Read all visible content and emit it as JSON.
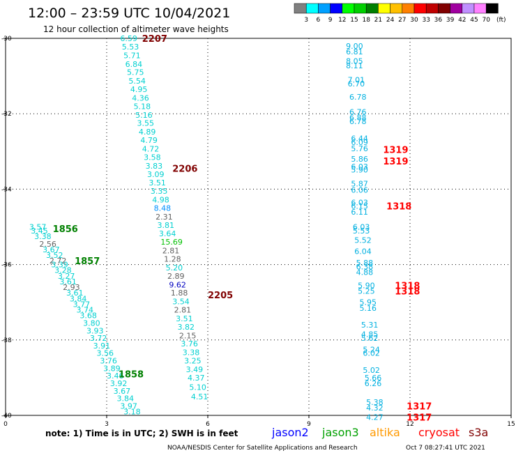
{
  "chart_data": {
    "type": "scatter",
    "title": "12:00 – 23:59 UTC 10/04/2021",
    "subtitle": "12 hour collection of altimeter wave heights",
    "x_range": [
      0,
      15
    ],
    "y_range": [
      -40,
      -30
    ],
    "x_ticks": [
      "0",
      "3",
      "6",
      "9",
      "12",
      "15"
    ],
    "y_ticks": [
      "-30",
      "-32",
      "-34",
      "-36",
      "-38",
      "-40"
    ],
    "grid": true,
    "colorbar": {
      "unit": "(ft)",
      "labels": [
        "3",
        "6",
        "9",
        "12",
        "15",
        "18",
        "21",
        "24",
        "27",
        "30",
        "33",
        "36",
        "39",
        "42",
        "45",
        "70"
      ],
      "colors": [
        "#808080",
        "#00ffff",
        "#00a0ff",
        "#0000ff",
        "#00ff00",
        "#00d000",
        "#008000",
        "#ffff00",
        "#ffc000",
        "#ff8000",
        "#ff0000",
        "#c00000",
        "#800000",
        "#a000a0",
        "#c090ff",
        "#ff80ff",
        "#000000"
      ]
    },
    "tracks": [
      {
        "name": "track-a",
        "color": "#00d0d0",
        "points": [
          {
            "x": 0.7,
            "y": -35.0,
            "v": "3.57"
          },
          {
            "x": 0.75,
            "y": -35.1,
            "v": "3.45"
          },
          {
            "x": 0.85,
            "y": -35.25,
            "v": "3.38"
          },
          {
            "x": 1.0,
            "y": -35.45,
            "v": "2.56",
            "c": "#606060"
          },
          {
            "x": 1.1,
            "y": -35.6,
            "v": "3.67"
          },
          {
            "x": 1.2,
            "y": -35.75,
            "v": "3.52"
          },
          {
            "x": 1.3,
            "y": -35.9,
            "v": "2.72",
            "c": "#606060"
          },
          {
            "x": 1.35,
            "y": -36.0,
            "v": "3.39"
          },
          {
            "x": 1.45,
            "y": -36.15,
            "v": "3.28"
          },
          {
            "x": 1.55,
            "y": -36.3,
            "v": "3.27"
          },
          {
            "x": 1.6,
            "y": -36.45,
            "v": "3.61"
          },
          {
            "x": 1.7,
            "y": -36.6,
            "v": "2.93",
            "c": "#606060"
          },
          {
            "x": 1.8,
            "y": -36.75,
            "v": "3.61"
          },
          {
            "x": 1.9,
            "y": -36.9,
            "v": "3.84"
          },
          {
            "x": 2.0,
            "y": -37.05,
            "v": "3.77"
          },
          {
            "x": 2.1,
            "y": -37.2,
            "v": "3.74"
          },
          {
            "x": 2.2,
            "y": -37.35,
            "v": "3.68"
          },
          {
            "x": 2.3,
            "y": -37.55,
            "v": "3.80"
          },
          {
            "x": 2.4,
            "y": -37.75,
            "v": "3.93"
          },
          {
            "x": 2.5,
            "y": -37.95,
            "v": "3.72"
          },
          {
            "x": 2.6,
            "y": -38.15,
            "v": "3.91"
          },
          {
            "x": 2.7,
            "y": -38.35,
            "v": "3.56"
          },
          {
            "x": 2.8,
            "y": -38.55,
            "v": "3.76"
          },
          {
            "x": 2.9,
            "y": -38.75,
            "v": "3.89"
          },
          {
            "x": 3.0,
            "y": -38.95,
            "v": "3.46"
          },
          {
            "x": 3.1,
            "y": -39.15,
            "v": "3.92"
          },
          {
            "x": 3.2,
            "y": -39.35,
            "v": "3.67"
          },
          {
            "x": 3.3,
            "y": -39.55,
            "v": "3.84"
          },
          {
            "x": 3.4,
            "y": -39.75,
            "v": "3.97"
          },
          {
            "x": 3.5,
            "y": -39.9,
            "v": "3.18"
          }
        ],
        "labels": [
          {
            "x": 1.4,
            "y": -35.05,
            "t": "1856",
            "c": "#008000"
          },
          {
            "x": 2.05,
            "y": -35.9,
            "t": "1857",
            "c": "#008000"
          },
          {
            "x": 3.35,
            "y": -38.9,
            "t": "1858",
            "c": "#008000"
          }
        ]
      },
      {
        "name": "track-b",
        "color": "#00d0d0",
        "points": [
          {
            "x": 3.4,
            "y": -30.0,
            "v": "6.59"
          },
          {
            "x": 3.45,
            "y": -30.22,
            "v": "5.53"
          },
          {
            "x": 3.5,
            "y": -30.45,
            "v": "5.71"
          },
          {
            "x": 3.55,
            "y": -30.68,
            "v": "6.84"
          },
          {
            "x": 3.6,
            "y": -30.9,
            "v": "5.75"
          },
          {
            "x": 3.65,
            "y": -31.13,
            "v": "5.54"
          },
          {
            "x": 3.7,
            "y": -31.35,
            "v": "4.95"
          },
          {
            "x": 3.75,
            "y": -31.58,
            "v": "4.36"
          },
          {
            "x": 3.8,
            "y": -31.8,
            "v": "5.18"
          },
          {
            "x": 3.85,
            "y": -32.03,
            "v": "5.16"
          },
          {
            "x": 3.9,
            "y": -32.25,
            "v": "3.55"
          },
          {
            "x": 3.95,
            "y": -32.48,
            "v": "4.89"
          },
          {
            "x": 4.0,
            "y": -32.7,
            "v": "4.79"
          },
          {
            "x": 4.05,
            "y": -32.93,
            "v": "4.72"
          },
          {
            "x": 4.1,
            "y": -33.15,
            "v": "3.58"
          },
          {
            "x": 4.15,
            "y": -33.38,
            "v": "3.83"
          },
          {
            "x": 4.2,
            "y": -33.6,
            "v": "3.09"
          },
          {
            "x": 4.25,
            "y": -33.83,
            "v": "3.51"
          },
          {
            "x": 4.3,
            "y": -34.05,
            "v": "3.35"
          },
          {
            "x": 4.35,
            "y": -34.28,
            "v": "4.98"
          },
          {
            "x": 4.4,
            "y": -34.5,
            "v": "8.48",
            "c": "#0090ff"
          },
          {
            "x": 4.45,
            "y": -34.73,
            "v": "2.31",
            "c": "#606060"
          },
          {
            "x": 4.5,
            "y": -34.95,
            "v": "3.81"
          },
          {
            "x": 4.55,
            "y": -35.18,
            "v": "3.64"
          },
          {
            "x": 4.6,
            "y": -35.4,
            "v": "15.69",
            "c": "#00c000"
          },
          {
            "x": 4.65,
            "y": -35.63,
            "v": "2.81",
            "c": "#606060"
          },
          {
            "x": 4.7,
            "y": -35.85,
            "v": "1.28",
            "c": "#606060"
          },
          {
            "x": 4.75,
            "y": -36.08,
            "v": "5.20"
          },
          {
            "x": 4.8,
            "y": -36.3,
            "v": "2.89",
            "c": "#606060"
          },
          {
            "x": 4.85,
            "y": -36.53,
            "v": "9.62",
            "c": "#0000c0"
          },
          {
            "x": 4.9,
            "y": -36.75,
            "v": "1.88",
            "c": "#606060"
          },
          {
            "x": 4.95,
            "y": -36.98,
            "v": "3.54"
          },
          {
            "x": 5.0,
            "y": -37.2,
            "v": "2.81",
            "c": "#606060"
          },
          {
            "x": 5.05,
            "y": -37.43,
            "v": "3.51"
          },
          {
            "x": 5.1,
            "y": -37.65,
            "v": "3.82"
          },
          {
            "x": 5.15,
            "y": -37.88,
            "v": "2.15",
            "c": "#606060"
          },
          {
            "x": 5.2,
            "y": -38.1,
            "v": "3.76"
          },
          {
            "x": 5.25,
            "y": -38.33,
            "v": "3.38"
          },
          {
            "x": 5.3,
            "y": -38.55,
            "v": "3.25"
          },
          {
            "x": 5.35,
            "y": -38.78,
            "v": "3.49"
          },
          {
            "x": 5.4,
            "y": -39.0,
            "v": "4.37"
          },
          {
            "x": 5.45,
            "y": -39.25,
            "v": "5.10"
          },
          {
            "x": 5.5,
            "y": -39.5,
            "v": "4.51"
          }
        ],
        "labels": [
          {
            "x": 4.05,
            "y": -30.0,
            "t": "2207",
            "c": "#800000"
          },
          {
            "x": 4.95,
            "y": -33.45,
            "t": "2206",
            "c": "#800000"
          },
          {
            "x": 6.0,
            "y": -36.8,
            "t": "2205",
            "c": "#800000"
          }
        ]
      },
      {
        "name": "track-c",
        "color": "#00b0e0",
        "points": [
          {
            "x": 10.1,
            "y": -30.2,
            "v": "9.00"
          },
          {
            "x": 10.1,
            "y": -30.35,
            "v": "6.81"
          },
          {
            "x": 10.1,
            "y": -30.6,
            "v": "8.05"
          },
          {
            "x": 10.1,
            "y": -30.72,
            "v": "8.11"
          },
          {
            "x": 10.15,
            "y": -31.1,
            "v": "7.01"
          },
          {
            "x": 10.15,
            "y": -31.2,
            "v": "6.70"
          },
          {
            "x": 10.2,
            "y": -31.55,
            "v": "6.78"
          },
          {
            "x": 10.2,
            "y": -31.95,
            "v": "6.76"
          },
          {
            "x": 10.2,
            "y": -32.1,
            "v": "6.88"
          },
          {
            "x": 10.2,
            "y": -32.2,
            "v": "6.78"
          },
          {
            "x": 10.25,
            "y": -32.65,
            "v": "6.44"
          },
          {
            "x": 10.25,
            "y": -32.75,
            "v": "6.09"
          },
          {
            "x": 10.25,
            "y": -32.92,
            "v": "5.76"
          },
          {
            "x": 10.25,
            "y": -33.2,
            "v": "5.86"
          },
          {
            "x": 10.25,
            "y": -33.4,
            "v": "6.03"
          },
          {
            "x": 10.25,
            "y": -33.48,
            "v": "5.90"
          },
          {
            "x": 10.25,
            "y": -33.85,
            "v": "5.87"
          },
          {
            "x": 10.25,
            "y": -34.02,
            "v": "6.06"
          },
          {
            "x": 10.25,
            "y": -34.35,
            "v": "6.03"
          },
          {
            "x": 10.25,
            "y": -34.45,
            "v": "6.15"
          },
          {
            "x": 10.25,
            "y": -34.6,
            "v": "6.11"
          },
          {
            "x": 10.3,
            "y": -35.0,
            "v": "6.03"
          },
          {
            "x": 10.3,
            "y": -35.1,
            "v": "5.53"
          },
          {
            "x": 10.35,
            "y": -35.35,
            "v": "5.52"
          },
          {
            "x": 10.35,
            "y": -35.65,
            "v": "6.04"
          },
          {
            "x": 10.4,
            "y": -35.95,
            "v": "5.88"
          },
          {
            "x": 10.4,
            "y": -36.05,
            "v": "6.38"
          },
          {
            "x": 10.4,
            "y": -36.2,
            "v": "4.88"
          },
          {
            "x": 10.45,
            "y": -36.55,
            "v": "5.90"
          },
          {
            "x": 10.45,
            "y": -36.7,
            "v": "5.25"
          },
          {
            "x": 10.5,
            "y": -37.0,
            "v": "5.95"
          },
          {
            "x": 10.5,
            "y": -37.15,
            "v": "5.16"
          },
          {
            "x": 10.55,
            "y": -37.6,
            "v": "5.31"
          },
          {
            "x": 10.55,
            "y": -37.85,
            "v": "4.85"
          },
          {
            "x": 10.55,
            "y": -37.95,
            "v": "5.62"
          },
          {
            "x": 10.6,
            "y": -38.25,
            "v": "5.24"
          },
          {
            "x": 10.6,
            "y": -38.35,
            "v": "6.02"
          },
          {
            "x": 10.6,
            "y": -38.8,
            "v": "5.02"
          },
          {
            "x": 10.65,
            "y": -39.0,
            "v": "5.66"
          },
          {
            "x": 10.65,
            "y": -39.15,
            "v": "6.26"
          },
          {
            "x": 10.7,
            "y": -39.65,
            "v": "5.38"
          },
          {
            "x": 10.7,
            "y": -39.8,
            "v": "4.32"
          },
          {
            "x": 10.7,
            "y": -40.05,
            "v": "4.27"
          }
        ],
        "labels": [
          {
            "x": 11.2,
            "y": -32.95,
            "t": "1319",
            "c": "#ff0000"
          },
          {
            "x": 11.2,
            "y": -33.25,
            "t": "1319",
            "c": "#ff0000"
          },
          {
            "x": 11.3,
            "y": -34.45,
            "t": "1318",
            "c": "#ff0000"
          },
          {
            "x": 11.55,
            "y": -36.55,
            "t": "1318",
            "c": "#ff0000"
          },
          {
            "x": 11.55,
            "y": -36.7,
            "t": "1318",
            "c": "#ff0000"
          },
          {
            "x": 11.9,
            "y": -39.75,
            "t": "1317",
            "c": "#ff0000"
          },
          {
            "x": 11.9,
            "y": -40.05,
            "t": "1317",
            "c": "#ff0000"
          }
        ]
      }
    ],
    "note": "note:  1) Time is in UTC; 2) SWH is in feet",
    "satellites": [
      {
        "name": "jason2",
        "color": "#0000ff"
      },
      {
        "name": "jason3",
        "color": "#00a000"
      },
      {
        "name": "altika",
        "color": "#ff9900"
      },
      {
        "name": "cryosat",
        "color": "#ff0000"
      },
      {
        "name": "s3a",
        "color": "#800000"
      }
    ],
    "credit": "NOAA/NESDIS Center for Satellite Applications and Research",
    "timestamp": "Oct  7 08:27:41 UTC 2021"
  }
}
